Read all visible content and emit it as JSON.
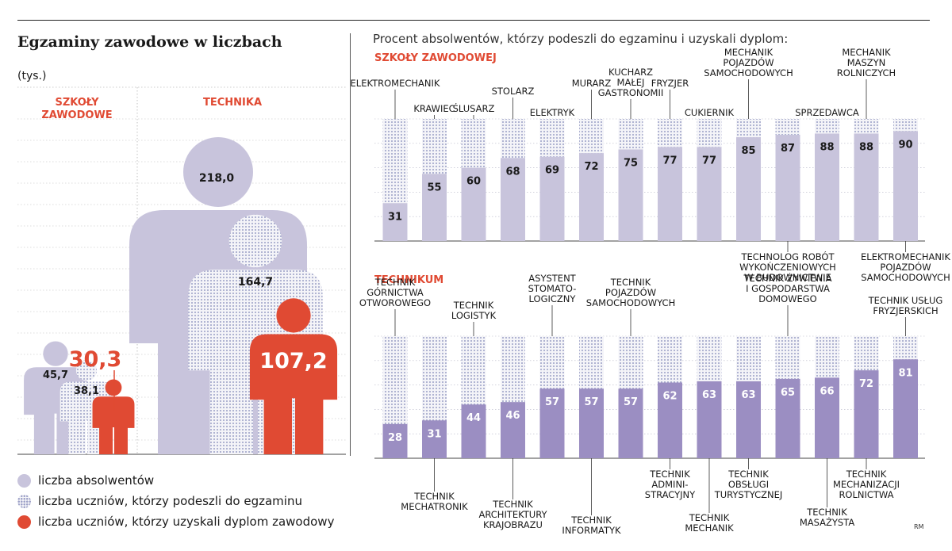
{
  "left": {
    "title": "Egzaminy zawodowe w liczbach",
    "unit": "(tys.)",
    "schools": [
      {
        "label": "SZKOŁY\nZAWODOWE",
        "graduates": 45.7,
        "graduates_label": "45,7",
        "took_exam": 38.1,
        "took_exam_label": "38,1",
        "diploma": 30.3,
        "diploma_label": "30,3"
      },
      {
        "label": "TECHNIKA",
        "graduates": 218.0,
        "graduates_label": "218,0",
        "took_exam": 164.7,
        "took_exam_label": "164,7",
        "diploma": 107.2,
        "diploma_label": "107,2"
      }
    ],
    "legend": [
      {
        "key": "grad",
        "label": "liczba absolwentów"
      },
      {
        "key": "exam",
        "label": "liczba uczniów, którzy podeszli do egzaminu"
      },
      {
        "key": "dipl",
        "label": "liczba uczniów, którzy uzyskali dyplom zawodowy"
      }
    ]
  },
  "right_title": "Procent absolwentów, którzy podeszli do egzaminu i uzyskali dyplom:",
  "credit": "RM",
  "colors": {
    "graduates": "#c8c4dc",
    "exam_dots": "#9ea2c8",
    "diploma": "#e04a33",
    "heading_red": "#e04a33",
    "bar_szkoly": "#c8c4dc",
    "bar_technikum": "#9b8ec2"
  },
  "chart_data": [
    {
      "type": "bar",
      "title": "SZKOŁY ZAWODOWEJ",
      "categories": [
        "ELEKTROMECHANIK",
        "KRAWIEC",
        "ŚLUSARZ",
        "STOLARZ",
        "ELEKTRYK",
        "MURARZ",
        "KUCHARZ MAŁEJ GASTRONOMII",
        "FRYZJER",
        "CUKIERNIK",
        "MECHANIK POJAZDÓW SAMOCHODOWYCH",
        "TECHNOLOG ROBÓT WYKOŃCZENIOWYCH W BUDOWNICTWIE",
        "SPRZEDAWCA",
        "MECHANIK MASZYN ROLNICZYCH",
        "ELEKTROMECHANIK POJAZDÓW SAMOCHODOWYCH"
      ],
      "labels": [
        "ELEKTROMECHANIK",
        "KRAWIEC",
        "ŚLUSARZ",
        "STOLARZ",
        "ELEKTRYK",
        "MURARZ",
        "KUCHARZ\nMAŁEJ\nGASTRONOMII",
        "FRYZJER",
        "CUKIERNIK",
        "MECHANIK\nPOJAZDÓW\nSAMOCHODOWYCH",
        "TECHNOLOG ROBÓT\nWYKOŃCZENIOWYCH\nW BUDOWNICTWIE",
        "SPRZEDAWCA",
        "MECHANIK\nMASZYN\nROLNICZYCH",
        "ELEKTROMECHANIK\nPOJAZDÓW\nSAMOCHODOWYCH"
      ],
      "label_side": [
        "top",
        "top",
        "top",
        "top",
        "top",
        "top",
        "top",
        "top",
        "top",
        "top",
        "bottom",
        "top",
        "top",
        "bottom"
      ],
      "values": [
        31,
        55,
        60,
        68,
        69,
        72,
        75,
        77,
        77,
        85,
        87,
        88,
        88,
        90
      ],
      "ylim": [
        0,
        100
      ]
    },
    {
      "type": "bar",
      "title": "TECHNIKUM",
      "categories": [
        "TECHNIK GÓRNICTWA OTWOROWEGO",
        "TECHNIK MECHATRONIK",
        "TECHNIK LOGISTYK",
        "TECHNIK ARCHITEKTURY KRAJOBRAZU",
        "ASYSTENT STOMATOLOGICZNY",
        "TECHNIK INFORMATYK",
        "TECHNIK POJAZDÓW SAMOCHODOWYCH",
        "TECHNIK ADMINISTRACYJNY",
        "TECHNIK MECHANIK",
        "TECHNIK OBSŁUGI TURYSTYCZNEJ",
        "TECHNIK ŻYWIENIA I GOSPODARSTWA DOMOWEGO",
        "TECHNIK MASAŻYSTA",
        "TECHNIK MECHANIZACJI ROLNICTWA",
        "TECHNIK USŁUG FRYZJERSKICH"
      ],
      "labels": [
        "TECHNIK\nGÓRNICTWA\nOTWOROWEGO",
        "TECHNIK\nMECHATRONIK",
        "TECHNIK\nLOGISTYK",
        "TECHNIK\nARCHITEKTURY\nKRAJOBRAZU",
        "ASYSTENT\nSTOMATO-\nLOGICZNY",
        "TECHNIK\nINFORMATYK",
        "TECHNIK\nPOJAZDÓW\nSAMOCHODOWYCH",
        "TECHNIK\nADMINI-\nSTRACYJNY",
        "TECHNIK\nMECHANIK",
        "TECHNIK\nOBSŁUGI\nTURYSTYCZNEJ",
        "TECHNIK ŻYWIENIA\nI GOSPODARSTWA\nDOMOWEGO",
        "TECHNIK\nMASAŻYSTA",
        "TECHNIK\nMECHANIZACJI\nROLNICTWA",
        "TECHNIK USŁUG\nFRYZJERSKICH"
      ],
      "label_side": [
        "top",
        "bottom",
        "top",
        "bottom",
        "top",
        "bottom",
        "top",
        "bottom",
        "bottom",
        "bottom",
        "top",
        "bottom",
        "bottom",
        "top"
      ],
      "values": [
        28,
        31,
        44,
        46,
        57,
        57,
        57,
        62,
        63,
        63,
        65,
        66,
        72,
        81
      ],
      "ylim": [
        0,
        100
      ]
    }
  ]
}
